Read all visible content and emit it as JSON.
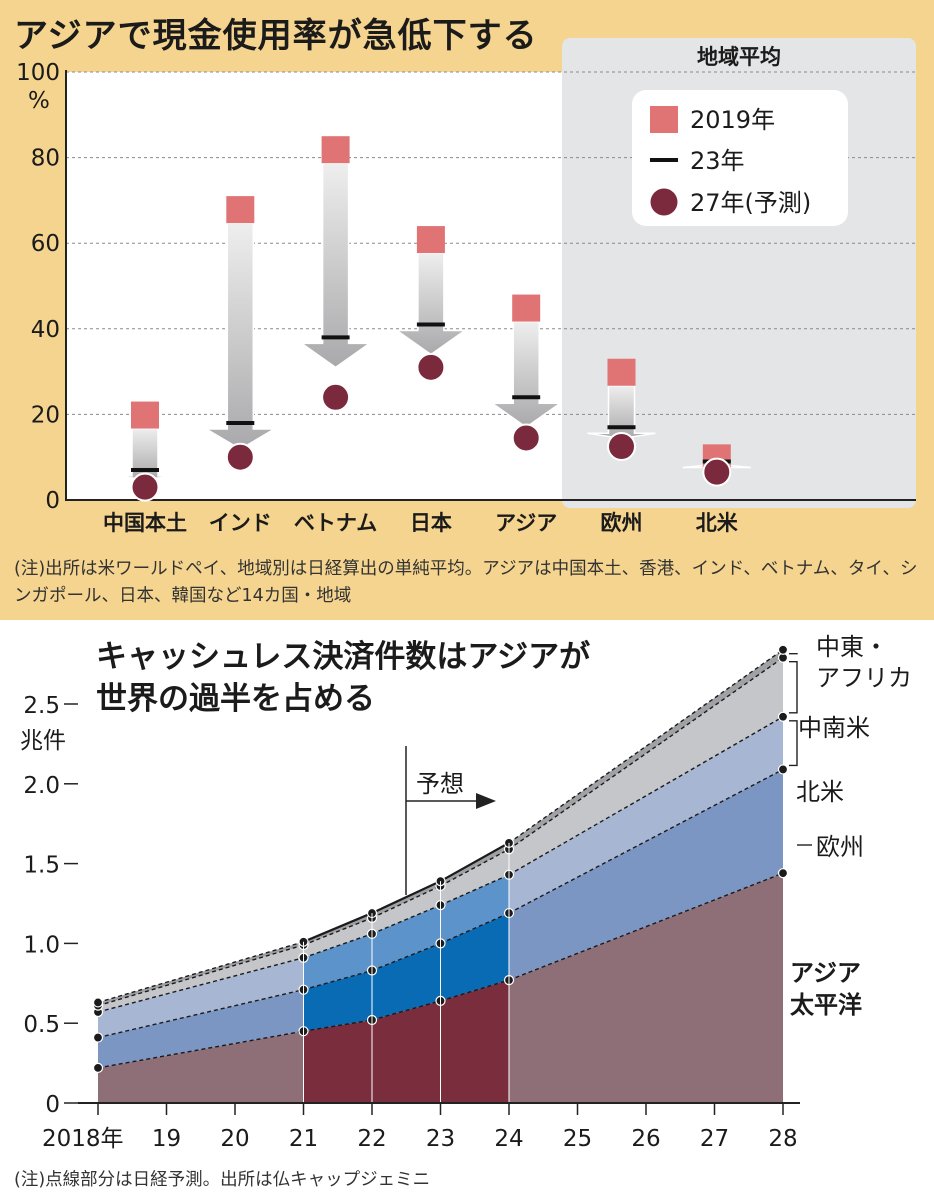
{
  "chart_data": [
    {
      "type": "range-dot",
      "title": "アジアで現金使用率が急低下する",
      "region_header": "地域平均",
      "ylabel": "%",
      "ylim": [
        0,
        100
      ],
      "yticks": [
        "0",
        "20",
        "40",
        "60",
        "80",
        "100"
      ],
      "grid": true,
      "legend_position": "top-right",
      "legend": [
        "2019年",
        "23年",
        "27年(予測)"
      ],
      "categories": [
        "中国本土",
        "インド",
        "ベトナム",
        "日本",
        "アジア",
        "欧州",
        "北米"
      ],
      "series": [
        {
          "name": "2019年",
          "values": [
            23,
            71,
            85,
            64,
            48,
            33,
            13
          ]
        },
        {
          "name": "23年",
          "values": [
            7,
            18,
            38,
            41,
            24,
            17,
            9
          ]
        },
        {
          "name": "27年(予測)",
          "values": [
            3,
            10,
            24,
            31,
            14.5,
            12.5,
            6.5
          ]
        }
      ],
      "regional_categories": [
        "アジア",
        "欧州",
        "北米"
      ],
      "note": "(注)出所は米ワールドペイ、地域別は日経算出の単純平均。アジアは中国本土、香港、インド、ベトナム、タイ、シンガポール、日本、韓国など14カ国・地域",
      "colors": {
        "bar2019": "#e07374",
        "dot2027": "#7b2a3d",
        "line2023": "#111111",
        "region_bg": "#e4e5e7",
        "panel_bg": "#f4d48e"
      }
    },
    {
      "type": "area",
      "title": "キャッシュレス決済件数はアジアが世界の過半を占める",
      "ylabel": "兆件",
      "ylim": [
        0,
        2.5
      ],
      "yticks": [
        "0",
        "0.5",
        "1.0",
        "1.5",
        "2.0",
        "2.5"
      ],
      "x": [
        "2018年",
        "19",
        "20",
        "21",
        "22",
        "23",
        "24",
        "25",
        "26",
        "27",
        "28"
      ],
      "forecast_label": "予想",
      "series": [
        {
          "name": "アジア太平洋",
          "values": [
            0.22,
            null,
            null,
            0.45,
            0.52,
            0.64,
            0.77,
            null,
            null,
            null,
            1.44
          ]
        },
        {
          "name": "欧州",
          "values": [
            0.19,
            null,
            null,
            0.26,
            0.31,
            0.36,
            0.42,
            null,
            null,
            null,
            0.65
          ]
        },
        {
          "name": "北米",
          "values": [
            0.16,
            null,
            null,
            0.2,
            0.23,
            0.24,
            0.24,
            null,
            null,
            null,
            0.33
          ]
        },
        {
          "name": "中南米",
          "values": [
            0.04,
            null,
            null,
            0.08,
            0.1,
            0.12,
            0.16,
            null,
            null,
            null,
            0.37
          ]
        },
        {
          "name": "中東・アフリカ",
          "values": [
            0.02,
            null,
            null,
            0.02,
            0.03,
            0.03,
            0.04,
            null,
            null,
            null,
            0.05
          ]
        }
      ],
      "totals": [
        0.63,
        null,
        null,
        1.01,
        1.19,
        1.39,
        1.63,
        null,
        null,
        null,
        2.84
      ],
      "note": "(注)点線部分は日経予測。出所は仏キャップジェミニ",
      "colors": {
        "asia_light": "#8e6f78",
        "asia_dark": "#7a2d3c",
        "europe_light": "#7c96c4",
        "europe_dark": "#0a6bb5",
        "na_light": "#a7b7d3",
        "na_dark": "#5d93cb",
        "latam": "#c4c6c9",
        "mea": "#9fa1a4"
      }
    }
  ]
}
